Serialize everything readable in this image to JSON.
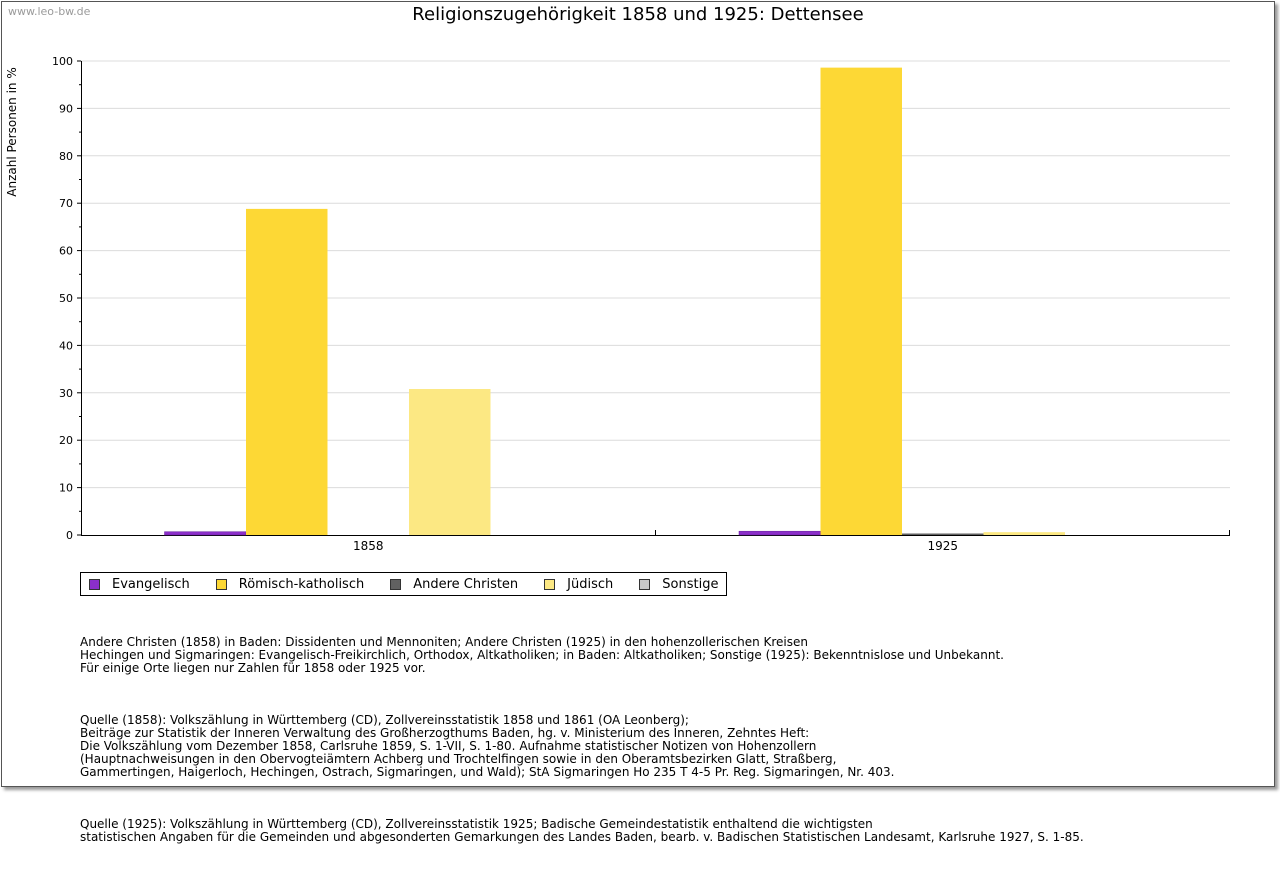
{
  "watermark": "www.leo-bw.de",
  "chart_data": {
    "type": "bar",
    "title": "Religionszugehörigkeit 1858 und 1925: Dettensee",
    "xlabel": "",
    "ylabel": "Anzahl Personen in %",
    "ylim": [
      0,
      100
    ],
    "yticks": [
      0,
      10,
      20,
      30,
      40,
      50,
      60,
      70,
      80,
      90,
      100
    ],
    "categories": [
      "1858",
      "1925"
    ],
    "grid": true,
    "legend_position": "bottom-left",
    "series": [
      {
        "name": "Evangelisch",
        "color": "#8b2fc9",
        "values": [
          0.7,
          0.8
        ]
      },
      {
        "name": "Römisch-katholisch",
        "color": "#fdd835",
        "values": [
          68.8,
          98.6
        ]
      },
      {
        "name": "Andere Christen",
        "color": "#616161",
        "values": [
          0,
          0.2
        ]
      },
      {
        "name": "Jüdisch",
        "color": "#fce883",
        "values": [
          30.8,
          0.6
        ]
      },
      {
        "name": "Sonstige",
        "color": "#c8c8c8",
        "values": [
          0,
          0
        ]
      }
    ]
  },
  "notes": {
    "p1": "Andere Christen (1858) in Baden: Dissidenten und Mennoniten; Andere Christen (1925) in den hohenzollerischen Kreisen\nHechingen und Sigmaringen: Evangelisch-Freikirchlich, Orthodox, Altkatholiken; in Baden: Altkatholiken; Sonstige (1925): Bekenntnislose und Unbekannt.\nFür einige Orte liegen nur Zahlen für 1858 oder 1925 vor.",
    "p2": "Quelle (1858): Volkszählung in Württemberg (CD), Zollvereinsstatistik 1858 und 1861 (OA Leonberg);\nBeiträge zur Statistik der Inneren Verwaltung des Großherzogthums Baden, hg. v. Ministerium des Inneren, Zehntes Heft:\nDie Volkszählung vom Dezember 1858, Carlsruhe 1859, S. 1-VII, S. 1-80. Aufnahme statistischer Notizen von Hohenzollern\n(Hauptnachweisungen in den Obervogteiämtern Achberg und Trochtelfingen sowie in den Oberamtsbezirken Glatt, Straßberg,\nGammertingen, Haigerloch, Hechingen, Ostrach, Sigmaringen, und Wald); StA Sigmaringen Ho 235 T 4-5 Pr. Reg. Sigmaringen, Nr. 403.",
    "p3": "Quelle (1925): Volkszählung in Württemberg (CD), Zollvereinsstatistik 1925; Badische Gemeindestatistik enthaltend die wichtigsten\nstatistischen Angaben für die Gemeinden und abgesonderten Gemarkungen des Landes Baden, bearb. v. Badischen Statistischen Landesamt, Karlsruhe 1927, S. 1-85."
  }
}
